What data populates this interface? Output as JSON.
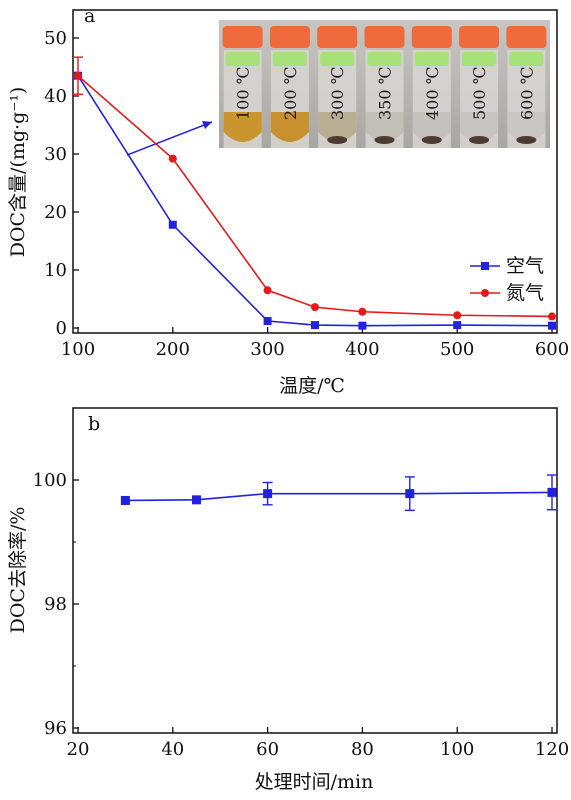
{
  "chart_data": [
    {
      "type": "line",
      "panel_label": "a",
      "xlabel": "温度/℃",
      "ylabel": "DOC含量/(mg·g⁻¹)",
      "xlim": [
        100,
        600
      ],
      "ylim": [
        0,
        50
      ],
      "x_ticks": [
        "100",
        "200",
        "300",
        "400",
        "500",
        "600"
      ],
      "y_ticks": [
        "0",
        "10",
        "20",
        "30",
        "40",
        "50"
      ],
      "legend_position": "right",
      "series": [
        {
          "name": "空气",
          "color": "#2222dd",
          "marker": "square",
          "x": [
            100,
            200,
            300,
            350,
            400,
            500,
            600
          ],
          "y": [
            43.5,
            17.8,
            1.2,
            0.5,
            0.4,
            0.5,
            0.4
          ],
          "err": [
            null,
            null,
            null,
            null,
            null,
            null,
            null
          ]
        },
        {
          "name": "氮气",
          "color": "#e61919",
          "marker": "circle",
          "x": [
            100,
            200,
            300,
            350,
            400,
            500,
            600
          ],
          "y": [
            43.5,
            29.2,
            6.5,
            3.6,
            2.8,
            2.2,
            2.0
          ],
          "err": [
            3.2,
            null,
            null,
            null,
            null,
            null,
            null
          ]
        }
      ],
      "inset_photo": {
        "labels": [
          "100 ℃",
          "200 ℃",
          "300 ℃",
          "350 ℃",
          "400 ℃",
          "500 ℃",
          "600 ℃"
        ],
        "cap_color": "#ef6a3c",
        "band_color": "#a8e07a",
        "liquid_colors": [
          "#c9952c",
          "#c8902e",
          "#b9ae94",
          "#c2bfb6",
          "#c4c2bc",
          "#c6c5c1",
          "#c8c7c3"
        ],
        "arrow_color": "#2222dd"
      }
    },
    {
      "type": "line",
      "panel_label": "b",
      "xlabel": "处理时间/min",
      "ylabel": "DOC去除率/%",
      "xlim": [
        20,
        120
      ],
      "ylim": [
        96,
        101
      ],
      "x_ticks": [
        "20",
        "40",
        "60",
        "80",
        "100",
        "120"
      ],
      "y_ticks": [
        "96",
        "98",
        "100"
      ],
      "series": [
        {
          "color": "#2222dd",
          "marker": "square",
          "x": [
            30,
            45,
            60,
            90,
            120
          ],
          "y": [
            99.67,
            99.68,
            99.78,
            99.78,
            99.8
          ],
          "err": [
            null,
            null,
            0.18,
            0.27,
            0.28
          ]
        }
      ]
    }
  ]
}
